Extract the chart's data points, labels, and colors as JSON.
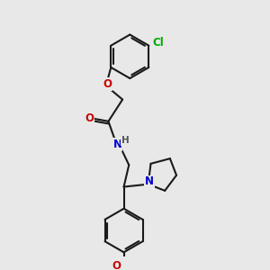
{
  "background_color": "#e8e8e8",
  "bond_color": "#1a1a1a",
  "bond_lw": 1.5,
  "atom_colors": {
    "O": "#cc0000",
    "N": "#0000cc",
    "Cl": "#00aa00",
    "C": "#1a1a1a"
  },
  "font_size": 8.5,
  "font_size_small": 7.5
}
